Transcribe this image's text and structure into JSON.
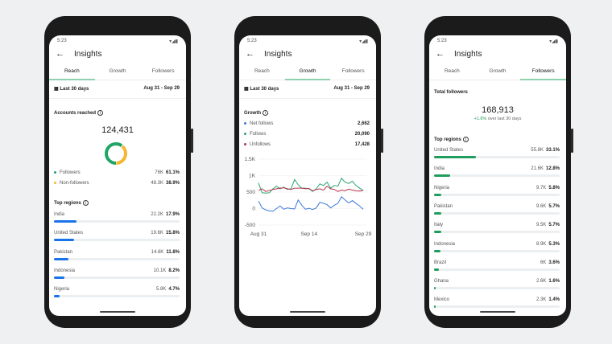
{
  "common": {
    "time": "5:23",
    "title": "Insights",
    "tabs": [
      "Reach",
      "Growth",
      "Followers"
    ],
    "date_range_label": "Last 30 days",
    "date_range": "Aug 31 - Sep 29",
    "colors": {
      "accent": "#8fd0ad",
      "reach_bar": "#1a73e8",
      "followers_bar": "#1f9d5d"
    }
  },
  "reach": {
    "accounts_reached_label": "Accounts reached",
    "accounts_reached": "124,431",
    "split": [
      {
        "label": "Followers",
        "value": "76K",
        "pct": "61.1%",
        "fraction": 0.611,
        "color": "#20a565"
      },
      {
        "label": "Non-followers",
        "value": "48.3K",
        "pct": "38.9%",
        "fraction": 0.389,
        "color": "#f5b731"
      }
    ],
    "top_regions_label": "Top regions",
    "regions": [
      {
        "name": "India",
        "value": "22.2K",
        "pct": "17.9%",
        "p": 17.9
      },
      {
        "name": "United States",
        "value": "19.6K",
        "pct": "15.8%",
        "p": 15.8
      },
      {
        "name": "Pakistan",
        "value": "14.6K",
        "pct": "11.8%",
        "p": 11.8
      },
      {
        "name": "Indonesia",
        "value": "10.1K",
        "pct": "8.2%",
        "p": 8.2
      },
      {
        "name": "Nigeria",
        "value": "5.8K",
        "pct": "4.7%",
        "p": 4.7
      }
    ]
  },
  "growth": {
    "label": "Growth",
    "legend": [
      {
        "label": "Net follows",
        "value": "2,662",
        "color": "#3b78d8"
      },
      {
        "label": "Follows",
        "value": "20,090",
        "color": "#2aa56e"
      },
      {
        "label": "Unfollows",
        "value": "17,428",
        "color": "#b5344c"
      }
    ],
    "chart_data": {
      "type": "line",
      "x_ticks": [
        "Aug 31",
        "Sep 14",
        "Sep 29"
      ],
      "y_ticks": [
        "1.5K",
        "1K",
        "500",
        "0",
        "-500"
      ],
      "ylim": [
        -500,
        1500
      ],
      "grid": true,
      "series": [
        {
          "name": "Net follows",
          "color": "#3b78d8",
          "values": [
            230,
            20,
            -40,
            -70,
            -80,
            0,
            80,
            -20,
            20,
            0,
            -10,
            260,
            100,
            -20,
            10,
            -30,
            20,
            190,
            160,
            120,
            20,
            100,
            160,
            360,
            260,
            170,
            240,
            160,
            80,
            -20
          ]
        },
        {
          "name": "Follows",
          "color": "#2aa56e",
          "values": [
            780,
            480,
            470,
            480,
            600,
            680,
            600,
            650,
            580,
            600,
            880,
            720,
            620,
            620,
            600,
            520,
            600,
            750,
            700,
            800,
            620,
            700,
            680,
            920,
            800,
            760,
            830,
            700,
            620,
            550
          ]
        },
        {
          "name": "Unfollows",
          "color": "#b5344c",
          "values": [
            550,
            600,
            520,
            550,
            580,
            600,
            620,
            630,
            600,
            580,
            620,
            620,
            620,
            600,
            610,
            540,
            580,
            600,
            560,
            680,
            600,
            580,
            520,
            560,
            540,
            590,
            560,
            540,
            530,
            550
          ]
        }
      ]
    }
  },
  "followers": {
    "total_label": "Total followers",
    "total": "168,913",
    "change": "+1.6%",
    "change_suffix": "over last 30 days",
    "top_regions_label": "Top regions",
    "regions": [
      {
        "name": "United States",
        "value": "55.8K",
        "pct": "33.1%",
        "p": 33.1
      },
      {
        "name": "India",
        "value": "21.6K",
        "pct": "12.8%",
        "p": 12.8
      },
      {
        "name": "Nigeria",
        "value": "9.7K",
        "pct": "5.8%",
        "p": 5.8
      },
      {
        "name": "Pakistan",
        "value": "9.6K",
        "pct": "5.7%",
        "p": 5.7
      },
      {
        "name": "Italy",
        "value": "9.5K",
        "pct": "5.7%",
        "p": 5.7
      },
      {
        "name": "Indonesia",
        "value": "8.9K",
        "pct": "5.3%",
        "p": 5.3
      },
      {
        "name": "Brazil",
        "value": "6K",
        "pct": "3.6%",
        "p": 3.6
      },
      {
        "name": "Ghana",
        "value": "2.6K",
        "pct": "1.6%",
        "p": 1.6
      },
      {
        "name": "Mexico",
        "value": "2.3K",
        "pct": "1.4%",
        "p": 1.4
      }
    ]
  }
}
